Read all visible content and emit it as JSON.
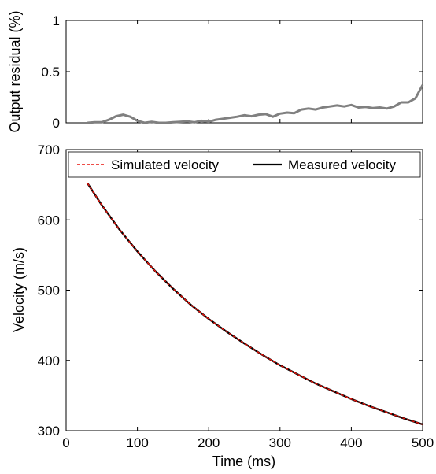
{
  "chart_data": [
    {
      "type": "line",
      "ylabel": "Output residual (%)",
      "xlim": [
        0,
        500
      ],
      "ylim": [
        0,
        1
      ],
      "yticks": [
        0,
        0.5,
        1
      ],
      "ytick_labels": [
        "0",
        "0.5",
        "1"
      ],
      "x_tick_labels_shown": false,
      "grid": false,
      "series": [
        {
          "color": "#808080",
          "x": [
            30,
            40,
            50,
            60,
            70,
            80,
            85,
            90,
            100,
            110,
            120,
            130,
            140,
            150,
            160,
            170,
            180,
            190,
            200,
            210,
            220,
            230,
            240,
            250,
            260,
            270,
            280,
            290,
            300,
            310,
            320,
            330,
            340,
            350,
            360,
            370,
            380,
            390,
            400,
            410,
            420,
            430,
            440,
            450,
            460,
            470,
            480,
            490,
            500
          ],
          "y": [
            0.0,
            0.005,
            0.005,
            0.03,
            0.065,
            0.08,
            0.07,
            0.06,
            0.02,
            0.0,
            0.01,
            0.0,
            0.0,
            0.005,
            0.01,
            0.015,
            0.005,
            0.02,
            0.01,
            0.03,
            0.04,
            0.05,
            0.06,
            0.075,
            0.065,
            0.08,
            0.085,
            0.06,
            0.09,
            0.1,
            0.095,
            0.13,
            0.14,
            0.13,
            0.15,
            0.16,
            0.17,
            0.16,
            0.175,
            0.15,
            0.155,
            0.145,
            0.15,
            0.14,
            0.16,
            0.2,
            0.2,
            0.24,
            0.37
          ]
        }
      ]
    },
    {
      "type": "line",
      "xlabel": "Time (ms)",
      "ylabel": "Velocity (m/s)",
      "xlim": [
        0,
        500
      ],
      "ylim": [
        300,
        700
      ],
      "xticks": [
        0,
        100,
        200,
        300,
        400,
        500
      ],
      "xtick_labels": [
        "0",
        "100",
        "200",
        "300",
        "400",
        "500"
      ],
      "yticks": [
        300,
        400,
        500,
        600,
        700
      ],
      "ytick_labels": [
        "300",
        "400",
        "500",
        "600",
        "700"
      ],
      "grid": false,
      "legend_position": "top",
      "series": [
        {
          "name": "Measured velocity",
          "color": "#000000",
          "style": "solid",
          "x": [
            30,
            50,
            75,
            100,
            125,
            150,
            175,
            200,
            225,
            250,
            275,
            300,
            325,
            350,
            375,
            400,
            425,
            450,
            475,
            500
          ],
          "y": [
            652,
            621,
            586,
            555,
            527,
            502,
            479,
            459,
            441,
            424,
            408,
            393,
            380,
            367,
            356,
            345,
            335,
            326,
            317,
            309
          ]
        },
        {
          "name": "Simulated velocity",
          "color": "#e8140c",
          "style": "dashed",
          "x": [
            30,
            50,
            75,
            100,
            125,
            150,
            175,
            200,
            225,
            250,
            275,
            300,
            325,
            350,
            375,
            400,
            425,
            450,
            475,
            500
          ],
          "y": [
            652,
            621,
            586,
            555,
            527,
            502,
            479,
            459,
            441,
            424,
            408,
            393,
            380,
            367,
            356,
            345,
            335,
            326,
            317,
            309
          ]
        }
      ]
    }
  ]
}
